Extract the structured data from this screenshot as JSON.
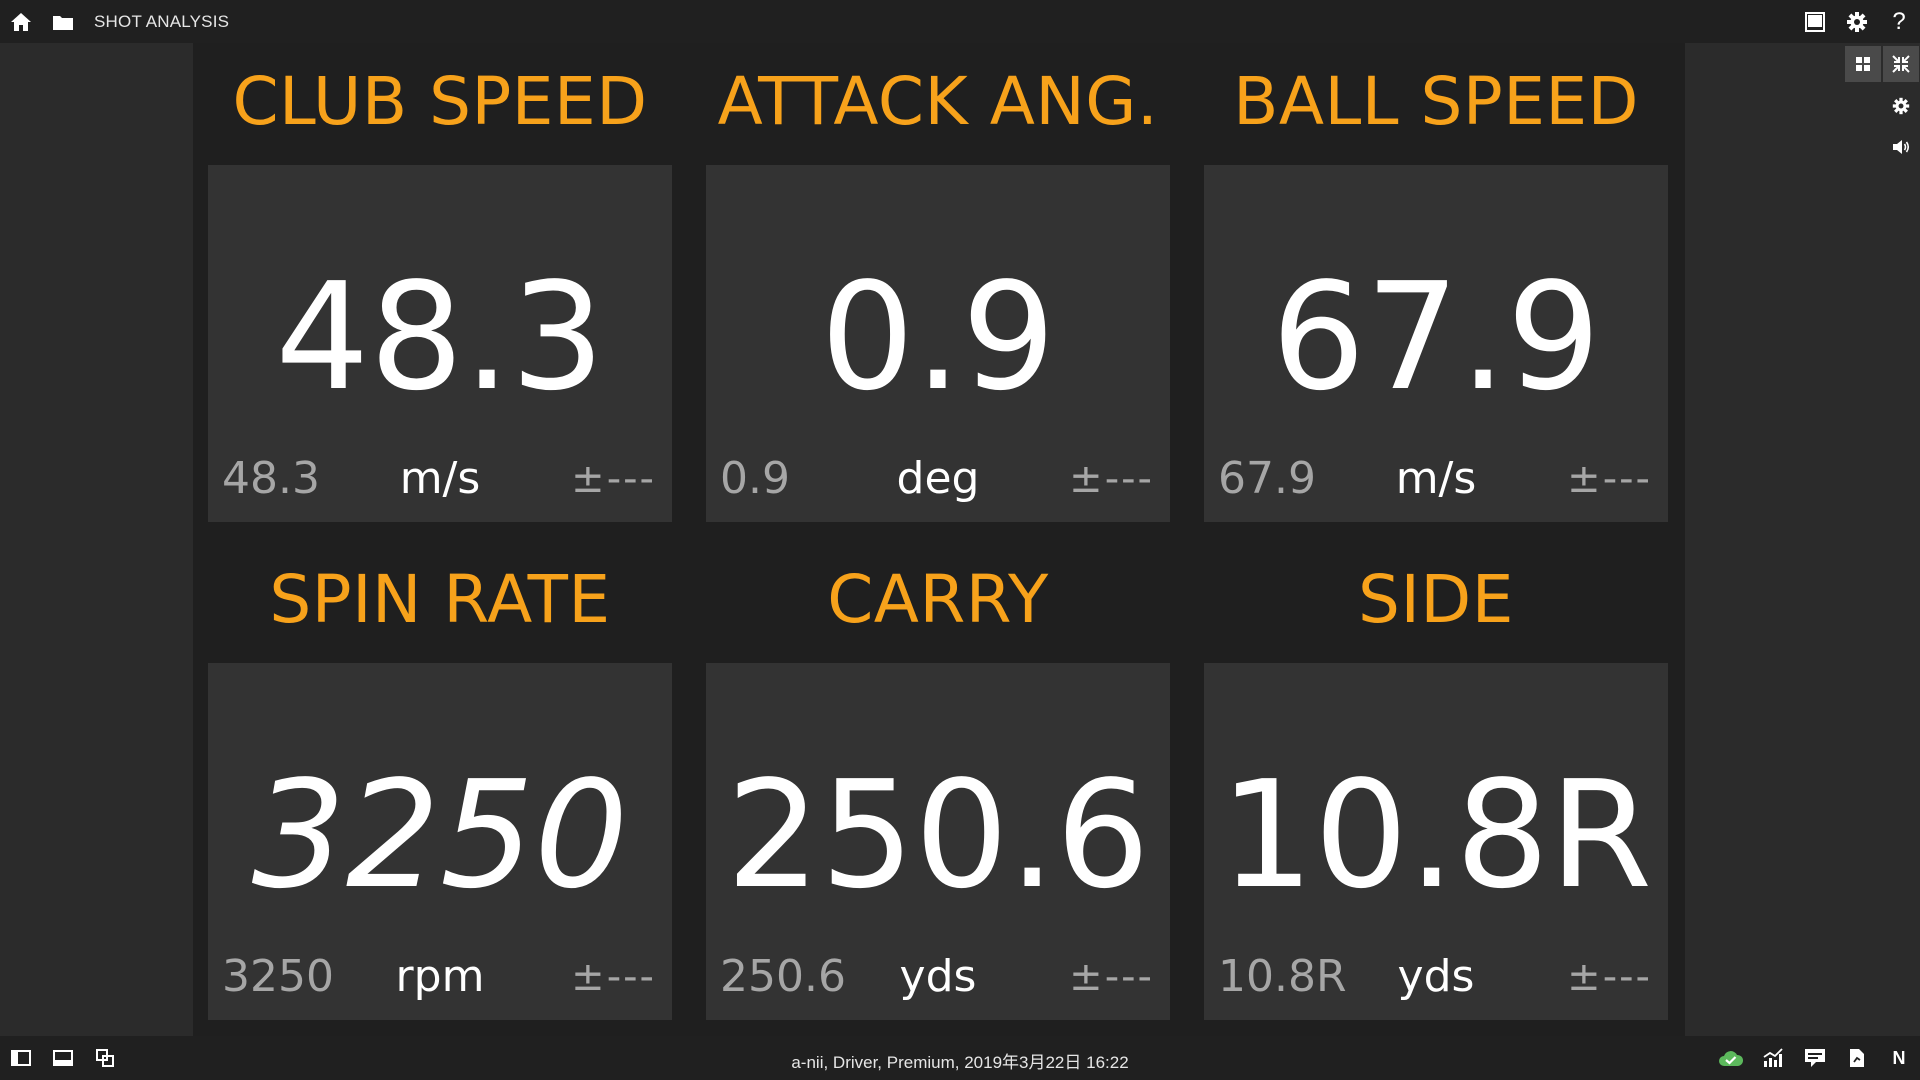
{
  "app": {
    "title": "SHOT ANALYSIS"
  },
  "topbar": {
    "left_icons": [
      "home-icon",
      "folder-icon"
    ],
    "right_icons": [
      "window-icon",
      "gear-icon",
      "help-icon"
    ],
    "help_glyph": "?"
  },
  "rail": {
    "buttons": [
      "grid-view-icon",
      "collapse-icon",
      "settings-icon",
      "sound-icon"
    ]
  },
  "metrics": [
    {
      "label": "CLUB SPEED",
      "value": "48.3",
      "last": "48.3",
      "unit": "m/s",
      "deviation": "±---"
    },
    {
      "label": "ATTACK ANG.",
      "value": "0.9",
      "last": "0.9",
      "unit": "deg",
      "deviation": "±---"
    },
    {
      "label": "BALL SPEED",
      "value": "67.9",
      "last": "67.9",
      "unit": "m/s",
      "deviation": "±---"
    },
    {
      "label": "SPIN RATE",
      "value": "3250",
      "last": "3250",
      "unit": "rpm",
      "deviation": "±---"
    },
    {
      "label": "CARRY",
      "value": "250.6",
      "last": "250.6",
      "unit": "yds",
      "deviation": "±---"
    },
    {
      "label": "SIDE",
      "value": "10.8R",
      "last": "10.8R",
      "unit": "yds",
      "deviation": "±---"
    }
  ],
  "status_bar": {
    "text": "a-nii, Driver, Premium, 2019年3月22日 16:22",
    "left_icons": [
      "panel-left-icon",
      "panel-bottom-icon",
      "overlap-windows-icon"
    ],
    "right_icons": [
      "cloud-check-icon",
      "stats-chart-icon",
      "message-icon",
      "document-icon",
      "n-icon"
    ],
    "n_glyph": "N"
  },
  "colors": {
    "accent": "#f7a21b",
    "background": "#2b2b2b",
    "tile": "#1f1f1f",
    "panel": "#333333",
    "cloud_ok": "#5cb85c"
  }
}
